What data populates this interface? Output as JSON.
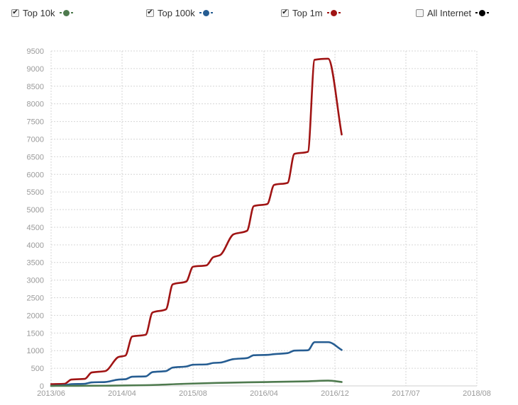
{
  "legend": {
    "items": [
      {
        "label": "Top 10k",
        "checked": true,
        "color": "#4e7a4e"
      },
      {
        "label": "Top 100k",
        "checked": true,
        "color": "#265d92"
      },
      {
        "label": "Top 1m",
        "checked": true,
        "color": "#a01414"
      },
      {
        "label": "All Internet",
        "checked": false,
        "color": "#000000"
      }
    ]
  },
  "chart_data": {
    "type": "line",
    "title": "",
    "xlabel": "",
    "ylabel": "",
    "ylim": [
      0,
      9500
    ],
    "xlim": [
      "2013-05",
      "2018-08"
    ],
    "grid": true,
    "legend_position": "top",
    "y_ticks": [
      0,
      500,
      1000,
      1500,
      2000,
      2500,
      3000,
      3500,
      4000,
      4500,
      5000,
      5500,
      6000,
      6500,
      7000,
      7500,
      8000,
      8500,
      9000,
      9500
    ],
    "x_ticks": [
      "2013/06",
      "2014/04",
      "2015/08",
      "2016/04",
      "2016/12",
      "2017/07",
      "2018/08"
    ],
    "series": [
      {
        "name": "Top 1m",
        "color": "#a01414",
        "points": [
          [
            "2013-05",
            50
          ],
          [
            "2013-07",
            60
          ],
          [
            "2013-08",
            180
          ],
          [
            "2013-10",
            200
          ],
          [
            "2013-11",
            380
          ],
          [
            "2014-01",
            420
          ],
          [
            "2014-03",
            820
          ],
          [
            "2014-04",
            860
          ],
          [
            "2014-05",
            1400
          ],
          [
            "2014-07",
            1450
          ],
          [
            "2014-08",
            2080
          ],
          [
            "2014-10",
            2170
          ],
          [
            "2014-11",
            2880
          ],
          [
            "2015-01",
            2960
          ],
          [
            "2015-02",
            3380
          ],
          [
            "2015-04",
            3420
          ],
          [
            "2015-05",
            3650
          ],
          [
            "2015-06",
            3710
          ],
          [
            "2015-08",
            4300
          ],
          [
            "2015-10",
            4400
          ],
          [
            "2015-11",
            5100
          ],
          [
            "2016-01",
            5160
          ],
          [
            "2016-02",
            5700
          ],
          [
            "2016-04",
            5760
          ],
          [
            "2016-05",
            6580
          ],
          [
            "2016-07",
            6640
          ],
          [
            "2016-08",
            9250
          ],
          [
            "2016-10",
            9280
          ],
          [
            "2016-12",
            7130
          ]
        ]
      },
      {
        "name": "Top 100k",
        "color": "#265d92",
        "points": [
          [
            "2013-05",
            0
          ],
          [
            "2013-07",
            20
          ],
          [
            "2013-08",
            50
          ],
          [
            "2013-10",
            60
          ],
          [
            "2013-11",
            100
          ],
          [
            "2014-01",
            110
          ],
          [
            "2014-03",
            180
          ],
          [
            "2014-04",
            190
          ],
          [
            "2014-05",
            260
          ],
          [
            "2014-07",
            270
          ],
          [
            "2014-08",
            390
          ],
          [
            "2014-10",
            420
          ],
          [
            "2014-11",
            520
          ],
          [
            "2015-01",
            550
          ],
          [
            "2015-02",
            600
          ],
          [
            "2015-04",
            610
          ],
          [
            "2015-05",
            650
          ],
          [
            "2015-06",
            660
          ],
          [
            "2015-08",
            760
          ],
          [
            "2015-10",
            790
          ],
          [
            "2015-11",
            870
          ],
          [
            "2016-01",
            880
          ],
          [
            "2016-02",
            900
          ],
          [
            "2016-04",
            930
          ],
          [
            "2016-05",
            1000
          ],
          [
            "2016-07",
            1010
          ],
          [
            "2016-08",
            1240
          ],
          [
            "2016-10",
            1240
          ],
          [
            "2016-12",
            1020
          ]
        ]
      },
      {
        "name": "Top 10k",
        "color": "#4e7a4e",
        "points": [
          [
            "2013-05",
            0
          ],
          [
            "2014-01",
            5
          ],
          [
            "2014-07",
            20
          ],
          [
            "2015-01",
            60
          ],
          [
            "2015-07",
            90
          ],
          [
            "2016-01",
            110
          ],
          [
            "2016-07",
            130
          ],
          [
            "2016-10",
            150
          ],
          [
            "2016-12",
            110
          ]
        ]
      }
    ]
  }
}
